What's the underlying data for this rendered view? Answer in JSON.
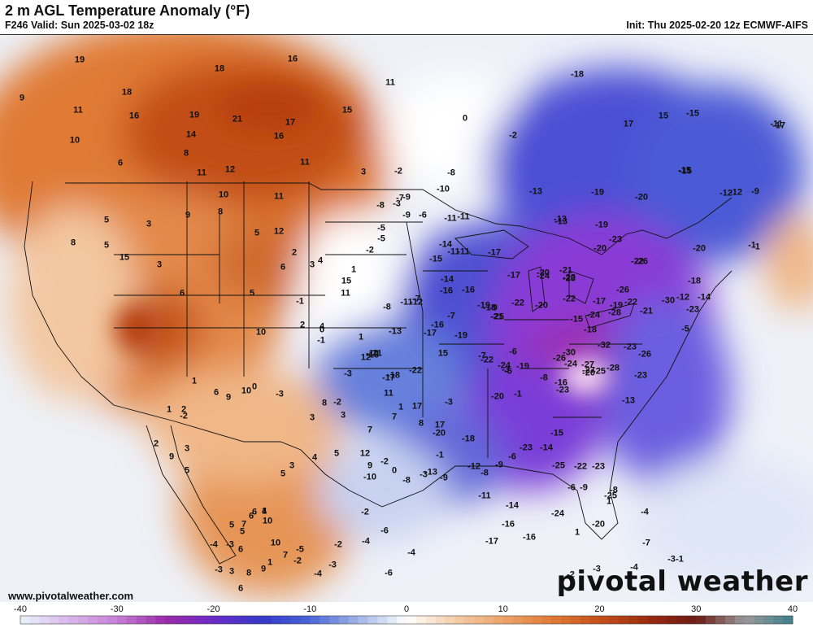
{
  "header": {
    "title": "2 m AGL Temperature Anomaly (°F)",
    "valid": "F246 Valid: Sun 2025-03-02 18z",
    "init": "Init: Thu 2025-02-20 12z ECMWF-AIFS"
  },
  "footer": {
    "website": "www.pivotalweather.com",
    "brand": "pivotal weather"
  },
  "colors": {
    "warm_core": "#b8400f",
    "warm_mid": "#e07a35",
    "warm_light": "#f3c7a1",
    "neutral": "#ffffff",
    "cool_light": "#d6e2f5",
    "cool_mid": "#5570d8",
    "cold_blue": "#3438c9",
    "cold_purple": "#7a2fd1",
    "cold_deep": "#9a2aa8"
  },
  "colorbar": {
    "ticks": [
      "-40",
      "-30",
      "-20",
      "-10",
      "0",
      "10",
      "20",
      "30",
      "40"
    ]
  },
  "map_values": [
    "19",
    "9",
    "18",
    "18",
    "16",
    "11",
    "11",
    "19",
    "16",
    "21",
    "17",
    "14",
    "10",
    "8",
    "6",
    "11",
    "12",
    "16",
    "11",
    "15",
    "0",
    "-2",
    "3",
    "-2",
    "-15",
    "-8",
    "-13",
    "-19",
    "-20",
    "-15",
    "-18",
    "-17",
    "-12",
    "-9",
    "-11",
    "17",
    "15",
    "-15",
    "-11",
    "-13",
    "-8",
    "-6",
    "-11",
    "-10",
    "-7",
    "-5",
    "-11",
    "-9",
    "-3",
    "-2",
    "-16",
    "-15",
    "-17",
    "-14",
    "-16",
    "-12",
    "-1",
    "-19",
    "-20",
    "-22",
    "-13",
    "-12",
    "-1",
    "-18",
    "-20",
    "-11",
    "-5",
    "-10",
    "-19",
    "-17",
    "-16",
    "-13",
    "-11",
    "-8",
    "-9",
    "-13",
    "-17",
    "-21",
    "-24",
    "-14",
    "-18",
    "-22",
    "-20",
    "-23",
    "-17",
    "-26",
    "-22",
    "-26",
    "-18",
    "-23",
    "-19",
    "-20",
    "-21",
    "-19",
    "-20",
    "-15",
    "-7",
    "-9",
    "-7",
    "-22",
    "-21",
    "-22",
    "-25",
    "-24",
    "-30",
    "-28",
    "-32",
    "-30",
    "-27",
    "-25",
    "-28",
    "-24",
    "-26",
    "-24",
    "-22",
    "-19",
    "-23",
    "-26",
    "-27",
    "-20",
    "-23",
    "-16",
    "-20",
    "-23",
    "-15",
    "-14",
    "-13",
    "-12",
    "-14",
    "-18",
    "-21",
    "-22",
    "-17",
    "15",
    "-8",
    "-7",
    "-5",
    "-6",
    "-5",
    "-3",
    "-1",
    "-6",
    "-9",
    "-8",
    "-7",
    "-1",
    "-4",
    "-3",
    "-2",
    "-3",
    "-4",
    "1",
    "1",
    "-6",
    "-12",
    "-8",
    "-9",
    "-9",
    "-13",
    "-3",
    "-1",
    "-3",
    "1",
    "-2",
    "-11",
    "-14",
    "12",
    "7",
    "8",
    "7",
    "17",
    "17",
    "11",
    "12",
    "11",
    "10",
    "5",
    "12",
    "5",
    "8",
    "9",
    "3",
    "5",
    "8",
    "15",
    "3",
    "5",
    "2",
    "6",
    "6",
    "4",
    "1",
    "3",
    "-1",
    "10",
    "11",
    "15",
    "4",
    "2",
    "0",
    "-1",
    "1",
    "-3",
    "-2",
    "8",
    "3",
    "3",
    "5",
    "4",
    "5",
    "3",
    "1",
    "6",
    "7",
    "5",
    "10",
    "7",
    "9",
    "8",
    "6",
    "3",
    "-3",
    "0",
    "10",
    "9",
    "6",
    "1",
    "-2",
    "2",
    "1",
    "2",
    "3",
    "9",
    "5",
    "4",
    "5",
    "-3",
    "-4",
    "-3",
    "6",
    "6",
    "10",
    "1",
    "-2",
    "-5",
    "-4",
    "-3",
    "-10",
    "-8",
    "9",
    "0",
    "-2",
    "-6",
    "-4",
    "-2",
    "-4",
    "-6",
    "-20",
    "-18",
    "-23",
    "-25",
    "-22",
    "-23",
    "-25",
    "-20",
    "-24",
    "-17",
    "-16",
    "-16"
  ]
}
